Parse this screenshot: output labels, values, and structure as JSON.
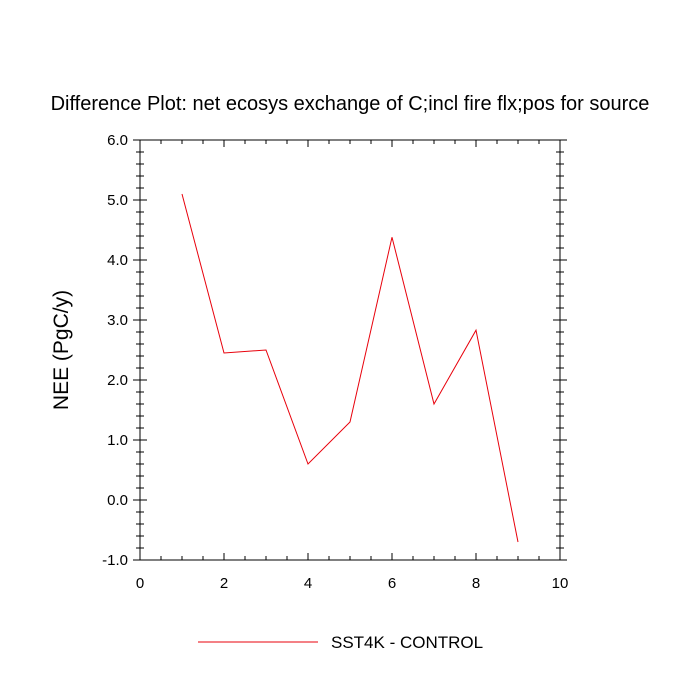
{
  "chart_data": {
    "type": "line",
    "title": "Difference Plot: net ecosys exchange of C;incl fire flx;pos for source",
    "xlabel": "",
    "ylabel": "NEE  (PgC/y)",
    "xlim": [
      0,
      10
    ],
    "ylim": [
      -1.0,
      6.0
    ],
    "xticks": [
      0,
      2,
      4,
      6,
      8,
      10
    ],
    "xtick_labels": [
      "0",
      "2",
      "4",
      "6",
      "8",
      "10"
    ],
    "yticks": [
      -1.0,
      0.0,
      1.0,
      2.0,
      3.0,
      4.0,
      5.0,
      6.0
    ],
    "ytick_labels": [
      "-1.0",
      "0.0",
      "1.0",
      "2.0",
      "3.0",
      "4.0",
      "5.0",
      "6.0"
    ],
    "grid": false,
    "legend_position": "bottom-center",
    "series": [
      {
        "name": "SST4K - CONTROL",
        "color": "#e8000b",
        "x": [
          1,
          2,
          3,
          4,
          5,
          6,
          7,
          8,
          9
        ],
        "y": [
          5.1,
          2.45,
          2.5,
          0.6,
          1.3,
          4.38,
          1.6,
          2.83,
          -0.7
        ]
      }
    ]
  }
}
